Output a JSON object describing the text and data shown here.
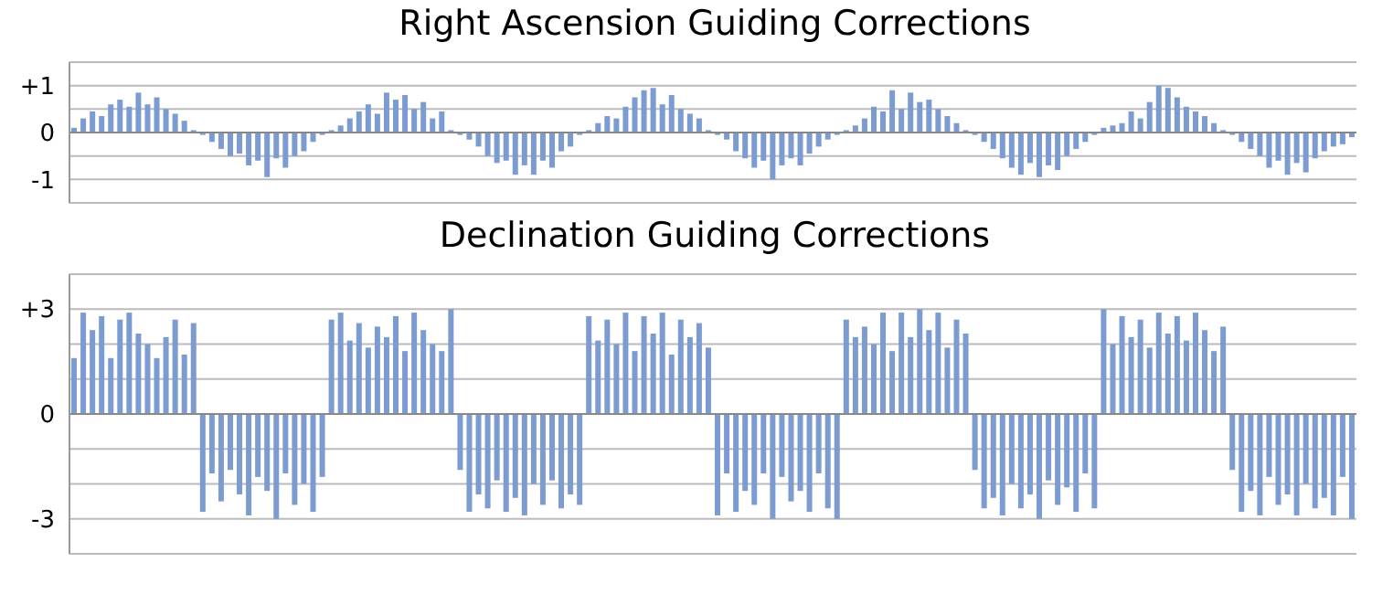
{
  "chart_data": [
    {
      "type": "bar",
      "title": "Right Ascension Guiding Corrections",
      "color": "#7b9bd1",
      "grid": "y",
      "tick_labels": "y",
      "categories": [
        null,
        null,
        null,
        null,
        null,
        null,
        null,
        null,
        null,
        null,
        null,
        null,
        null,
        null,
        null,
        null,
        null,
        null,
        null,
        null,
        null,
        null,
        null,
        null,
        null,
        null,
        null,
        null,
        null,
        null,
        null,
        null,
        null,
        null,
        null,
        null,
        null,
        null,
        null,
        null,
        null,
        null,
        null,
        null,
        null,
        null,
        null,
        null,
        null,
        null,
        null,
        null,
        null,
        null,
        null,
        null,
        null,
        null,
        null,
        null,
        null,
        null,
        null,
        null,
        null,
        null,
        null,
        null,
        null,
        null,
        null,
        null,
        null,
        null,
        null,
        null,
        null,
        null,
        null,
        null,
        null,
        null,
        null,
        null,
        null,
        null,
        null,
        null,
        null,
        null,
        null,
        null,
        null,
        null,
        null,
        null,
        null,
        null,
        null,
        null,
        null,
        null,
        null,
        null,
        null,
        null,
        null,
        null,
        null,
        null,
        null,
        null,
        null,
        null,
        null,
        null,
        null,
        null,
        null,
        null,
        null,
        null,
        null,
        null,
        null,
        null,
        null,
        null,
        null,
        null,
        null,
        null,
        null,
        null,
        null,
        null,
        null,
        null,
        null,
        null
      ],
      "values": [
        0.1,
        0.3,
        0.45,
        0.35,
        0.6,
        0.7,
        0.55,
        0.85,
        0.6,
        0.75,
        0.5,
        0.4,
        0.25,
        0.05,
        -0.05,
        -0.2,
        -0.35,
        -0.5,
        -0.45,
        -0.7,
        -0.6,
        -0.95,
        -0.55,
        -0.75,
        -0.5,
        -0.4,
        -0.2,
        -0.05,
        0.05,
        0.15,
        0.3,
        0.45,
        0.6,
        0.4,
        0.85,
        0.7,
        0.8,
        0.5,
        0.65,
        0.3,
        0.45,
        0.05,
        -0.05,
        -0.15,
        -0.3,
        -0.5,
        -0.65,
        -0.6,
        -0.9,
        -0.7,
        -0.9,
        -0.6,
        -0.75,
        -0.4,
        -0.3,
        -0.05,
        0.05,
        0.2,
        0.35,
        0.3,
        0.55,
        0.75,
        0.9,
        0.95,
        0.6,
        0.8,
        0.5,
        0.4,
        0.3,
        0.05,
        -0.05,
        -0.15,
        -0.4,
        -0.55,
        -0.75,
        -0.6,
        -1.0,
        -0.7,
        -0.55,
        -0.7,
        -0.45,
        -0.3,
        -0.15,
        -0.05,
        0.05,
        0.15,
        0.3,
        0.55,
        0.45,
        0.9,
        0.5,
        0.85,
        0.65,
        0.7,
        0.5,
        0.35,
        0.2,
        0.05,
        -0.05,
        -0.2,
        -0.35,
        -0.55,
        -0.75,
        -0.9,
        -0.65,
        -0.95,
        -0.7,
        -0.8,
        -0.5,
        -0.35,
        -0.2,
        -0.05,
        0.1,
        0.15,
        0.2,
        0.45,
        0.3,
        0.65,
        1.0,
        0.95,
        0.75,
        0.55,
        0.45,
        0.35,
        0.2,
        0.05,
        -0.05,
        -0.2,
        -0.35,
        -0.5,
        -0.75,
        -0.6,
        -0.9,
        -0.65,
        -0.85,
        -0.55,
        -0.4,
        -0.3,
        -0.25,
        -0.1
      ],
      "ylim": [
        -1.5,
        1.5
      ],
      "yticks": [
        {
          "value": 1.5,
          "label": null
        },
        {
          "value": 1,
          "label": "+1"
        },
        {
          "value": 0.5,
          "label": null
        },
        0,
        {
          "value": -0.5,
          "label": null
        },
        -1,
        {
          "value": -1.5,
          "label": null
        }
      ]
    },
    {
      "type": "bar",
      "title": "Declination Guiding Corrections",
      "color": "#7b9bd1",
      "grid": "y",
      "tick_labels": "y",
      "categories": [
        null,
        null,
        null,
        null,
        null,
        null,
        null,
        null,
        null,
        null,
        null,
        null,
        null,
        null,
        null,
        null,
        null,
        null,
        null,
        null,
        null,
        null,
        null,
        null,
        null,
        null,
        null,
        null,
        null,
        null,
        null,
        null,
        null,
        null,
        null,
        null,
        null,
        null,
        null,
        null,
        null,
        null,
        null,
        null,
        null,
        null,
        null,
        null,
        null,
        null,
        null,
        null,
        null,
        null,
        null,
        null,
        null,
        null,
        null,
        null,
        null,
        null,
        null,
        null,
        null,
        null,
        null,
        null,
        null,
        null,
        null,
        null,
        null,
        null,
        null,
        null,
        null,
        null,
        null,
        null,
        null,
        null,
        null,
        null,
        null,
        null,
        null,
        null,
        null,
        null,
        null,
        null,
        null,
        null,
        null,
        null,
        null,
        null,
        null,
        null,
        null,
        null,
        null,
        null,
        null,
        null,
        null,
        null,
        null,
        null,
        null,
        null,
        null,
        null,
        null,
        null,
        null,
        null,
        null,
        null,
        null,
        null,
        null,
        null,
        null,
        null,
        null,
        null,
        null,
        null,
        null,
        null,
        null,
        null,
        null,
        null,
        null,
        null,
        null,
        null
      ],
      "values": [
        1.6,
        2.9,
        2.4,
        2.8,
        1.6,
        2.7,
        2.9,
        2.3,
        2.0,
        1.6,
        2.2,
        2.7,
        1.7,
        2.6,
        -2.8,
        -1.7,
        -2.5,
        -1.6,
        -2.3,
        -2.9,
        -1.8,
        -2.2,
        -3.0,
        -1.7,
        -2.6,
        -2.0,
        -2.8,
        -1.8,
        2.7,
        2.9,
        2.1,
        2.6,
        1.9,
        2.5,
        2.2,
        2.8,
        1.8,
        2.9,
        2.4,
        2.0,
        1.8,
        3.0,
        -1.6,
        -2.8,
        -2.3,
        -2.7,
        -1.9,
        -2.8,
        -2.4,
        -2.9,
        -2.0,
        -2.6,
        -1.9,
        -2.7,
        -2.3,
        -2.6,
        2.8,
        2.1,
        2.7,
        2.0,
        2.9,
        1.8,
        2.8,
        2.3,
        2.9,
        1.7,
        2.7,
        2.2,
        2.6,
        1.9,
        -2.9,
        -1.7,
        -2.8,
        -2.2,
        -2.6,
        -1.7,
        -3.0,
        -1.8,
        -2.5,
        -2.2,
        -2.8,
        -1.7,
        -2.7,
        -3.0,
        2.7,
        2.2,
        2.5,
        2.0,
        2.9,
        1.8,
        2.9,
        2.2,
        3.0,
        2.4,
        2.9,
        1.9,
        2.7,
        2.3,
        -1.6,
        -2.7,
        -2.4,
        -2.9,
        -2.0,
        -2.7,
        -2.3,
        -3.0,
        -1.9,
        -2.6,
        -2.1,
        -2.8,
        -1.7,
        -2.7,
        3.0,
        2.0,
        2.8,
        2.2,
        2.7,
        1.9,
        2.9,
        2.3,
        2.8,
        2.1,
        2.9,
        2.4,
        1.8,
        2.5,
        -1.6,
        -2.8,
        -2.2,
        -2.9,
        -1.8,
        -2.6,
        -2.3,
        -2.9,
        -2.0,
        -2.7,
        -2.4,
        -2.9,
        -1.8,
        -3.0
      ],
      "ylim": [
        -4,
        4
      ],
      "yticks": [
        {
          "value": 4,
          "label": null
        },
        {
          "value": 3,
          "label": "+3"
        },
        {
          "value": 2,
          "label": null
        },
        {
          "value": 1,
          "label": null
        },
        0,
        {
          "value": -1,
          "label": null
        },
        {
          "value": -2,
          "label": null
        },
        -3,
        {
          "value": -4,
          "label": null
        }
      ]
    }
  ]
}
